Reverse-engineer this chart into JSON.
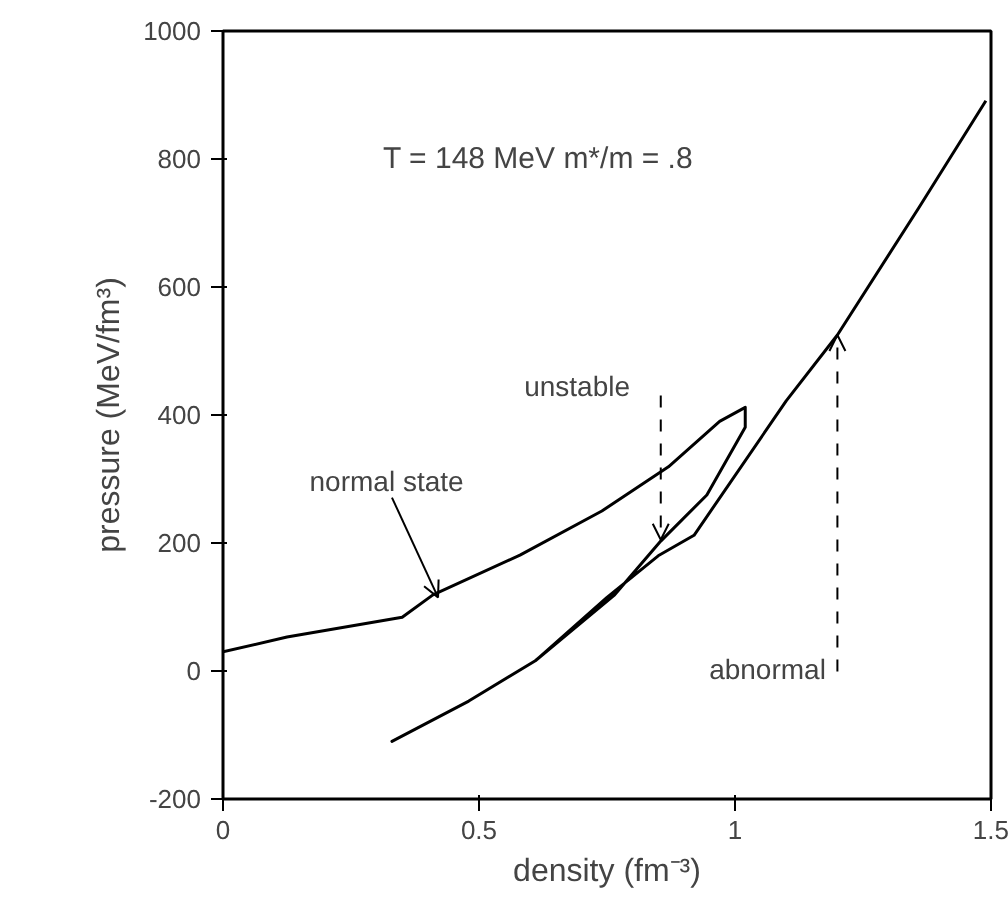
{
  "chart_data": {
    "type": "line",
    "xlabel": "density (fm⁻³)",
    "ylabel": "pressure (MeV/fm³)",
    "series": [
      {
        "color": "#000000",
        "x": [
          0,
          0.125,
          0.35,
          0.41,
          0.58,
          0.74,
          0.87,
          0.97,
          1.02,
          1.02,
          0.945,
          0.855,
          0.765,
          0.61,
          0.48,
          0.33,
          0.48,
          0.61,
          0.75,
          0.85,
          0.92,
          1.1,
          1.2,
          1.36,
          1.49
        ],
        "values": [
          30,
          53,
          84,
          119,
          181,
          250,
          319,
          390,
          412,
          381,
          275,
          203,
          119,
          16,
          -47,
          -110,
          -47,
          16,
          115,
          180,
          212,
          422,
          525,
          725,
          891
        ]
      }
    ],
    "xlim": [
      0,
      1.5
    ],
    "ylim": [
      -200,
      1000
    ],
    "xticks": [
      0,
      0.5,
      1,
      1.5
    ],
    "yticks": [
      -200,
      0,
      200,
      400,
      600,
      800,
      1000
    ],
    "grid": false,
    "marker": "none",
    "line_style": "solid",
    "annotations": [
      "T = 148 MeV   m*/m = .8",
      {
        "text": "normal state",
        "x": 0.42,
        "y": 115
      },
      {
        "text": "unstable",
        "x": 0.855,
        "y": 205
      },
      {
        "text": "abnormal",
        "x": 1.2,
        "y": 525
      }
    ]
  }
}
